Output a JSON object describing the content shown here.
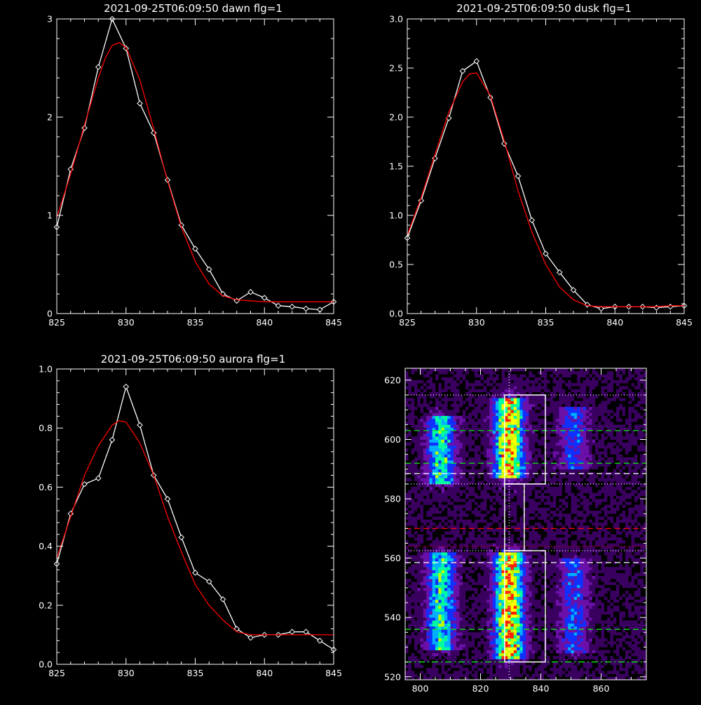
{
  "colors": {
    "background": "#000000",
    "axes": "#ffffff",
    "data_line": "#ffffff",
    "fit_line": "#ff0000"
  },
  "chart_data": [
    {
      "id": "dawn",
      "type": "line",
      "title": "2021-09-25T06:09:50 dawn flg=1",
      "xlim": [
        825,
        845
      ],
      "ylim": [
        0,
        3
      ],
      "xticks": [
        825,
        830,
        835,
        840,
        845
      ],
      "xtick_labels": [
        "825",
        "830",
        "835",
        "840",
        "845"
      ],
      "yticks": [
        0,
        1,
        2,
        3
      ],
      "ytick_labels": [
        "0",
        "1",
        "2",
        "3"
      ],
      "series": [
        {
          "role": "data",
          "color": "#ffffff",
          "marker": "diamond",
          "x": [
            825,
            826,
            827,
            828,
            829,
            830,
            831,
            832,
            833,
            834,
            835,
            836,
            837,
            838,
            839,
            840,
            841,
            842,
            843,
            844,
            845
          ],
          "y": [
            0.88,
            1.47,
            1.89,
            2.51,
            3.0,
            2.7,
            2.14,
            1.84,
            1.36,
            0.9,
            0.66,
            0.45,
            0.2,
            0.13,
            0.22,
            0.16,
            0.08,
            0.07,
            0.05,
            0.04,
            0.12
          ]
        },
        {
          "role": "fit",
          "color": "#ff0000",
          "x": [
            825,
            826,
            827,
            828,
            828.5,
            829,
            829.5,
            830,
            831,
            832,
            833,
            834,
            835,
            836,
            837,
            838,
            839,
            840,
            841,
            842,
            843,
            844,
            845
          ],
          "y": [
            0.98,
            1.42,
            1.92,
            2.4,
            2.6,
            2.73,
            2.76,
            2.71,
            2.38,
            1.88,
            1.35,
            0.88,
            0.53,
            0.3,
            0.18,
            0.14,
            0.13,
            0.12,
            0.12,
            0.12,
            0.12,
            0.12,
            0.12
          ]
        }
      ]
    },
    {
      "id": "dusk",
      "type": "line",
      "title": "2021-09-25T06:09:50 dusk flg=1",
      "xlim": [
        825,
        845
      ],
      "ylim": [
        0,
        3
      ],
      "xticks": [
        825,
        830,
        835,
        840,
        845
      ],
      "xtick_labels": [
        "825",
        "830",
        "835",
        "840",
        "845"
      ],
      "yticks": [
        0,
        0.5,
        1,
        1.5,
        2,
        2.5,
        3
      ],
      "ytick_labels": [
        "0.0",
        "0.5",
        "1.0",
        "1.5",
        "2.0",
        "2.5",
        "3.0"
      ],
      "series": [
        {
          "role": "data",
          "color": "#ffffff",
          "marker": "diamond",
          "x": [
            825,
            826,
            827,
            828,
            829,
            830,
            831,
            832,
            833,
            834,
            835,
            836,
            837,
            838,
            839,
            840,
            841,
            842,
            843,
            844,
            845
          ],
          "y": [
            0.77,
            1.15,
            1.58,
            1.99,
            2.47,
            2.57,
            2.2,
            1.73,
            1.4,
            0.95,
            0.61,
            0.42,
            0.24,
            0.09,
            0.05,
            0.07,
            0.07,
            0.07,
            0.06,
            0.07,
            0.08
          ]
        },
        {
          "role": "fit",
          "color": "#ff0000",
          "x": [
            825,
            826,
            827,
            828,
            829,
            829.5,
            830,
            831,
            832,
            833,
            834,
            835,
            836,
            837,
            838,
            839,
            840,
            841,
            842,
            843,
            844,
            845
          ],
          "y": [
            0.8,
            1.18,
            1.62,
            2.05,
            2.36,
            2.44,
            2.45,
            2.22,
            1.76,
            1.25,
            0.83,
            0.5,
            0.27,
            0.14,
            0.08,
            0.07,
            0.07,
            0.07,
            0.07,
            0.07,
            0.08,
            0.08
          ]
        }
      ]
    },
    {
      "id": "aurora",
      "type": "line",
      "title": "2021-09-25T06:09:50 aurora flg=1",
      "xlim": [
        825,
        845
      ],
      "ylim": [
        0,
        1
      ],
      "xticks": [
        825,
        830,
        835,
        840,
        845
      ],
      "xtick_labels": [
        "825",
        "830",
        "835",
        "840",
        "845"
      ],
      "yticks": [
        0,
        0.2,
        0.4,
        0.6,
        0.8,
        1.0
      ],
      "ytick_labels": [
        "0.0",
        "0.2",
        "0.4",
        "0.6",
        "0.8",
        "1.0"
      ],
      "series": [
        {
          "role": "data",
          "color": "#ffffff",
          "marker": "diamond",
          "x": [
            825,
            826,
            827,
            828,
            829,
            830,
            831,
            832,
            833,
            834,
            835,
            836,
            837,
            838,
            839,
            840,
            841,
            842,
            843,
            844,
            845
          ],
          "y": [
            0.34,
            0.51,
            0.61,
            0.63,
            0.76,
            0.94,
            0.81,
            0.64,
            0.56,
            0.43,
            0.31,
            0.28,
            0.22,
            0.12,
            0.09,
            0.1,
            0.1,
            0.11,
            0.11,
            0.08,
            0.05
          ]
        },
        {
          "role": "fit",
          "color": "#ff0000",
          "x": [
            825,
            826,
            827,
            828,
            829,
            829.5,
            830,
            831,
            832,
            833,
            834,
            835,
            836,
            837,
            838,
            839,
            840,
            841,
            842,
            843,
            844,
            845
          ],
          "y": [
            0.36,
            0.5,
            0.64,
            0.74,
            0.81,
            0.825,
            0.82,
            0.75,
            0.64,
            0.5,
            0.38,
            0.27,
            0.2,
            0.15,
            0.11,
            0.1,
            0.1,
            0.1,
            0.1,
            0.1,
            0.1,
            0.1
          ]
        }
      ]
    },
    {
      "id": "image",
      "type": "heatmap",
      "title": "",
      "xlim": [
        795,
        875
      ],
      "ylim": [
        519,
        624
      ],
      "xticks": [
        800,
        820,
        840,
        860
      ],
      "xtick_labels": [
        "800",
        "820",
        "840",
        "860"
      ],
      "yticks": [
        520,
        540,
        560,
        580,
        600,
        620
      ],
      "ytick_labels": [
        "520",
        "540",
        "560",
        "580",
        "600",
        "620"
      ],
      "colorscale": [
        "#000000",
        "#3a0060",
        "#6a10a8",
        "#1030ff",
        "#00b0ff",
        "#00ffa0",
        "#c0ff00",
        "#ffff00",
        "#ff2000"
      ],
      "bands": [
        {
          "x_center": 807,
          "x_width": 4.5,
          "y_ranges": [
            [
              585,
              608
            ],
            [
              529,
              562
            ]
          ],
          "peak": 0.62
        },
        {
          "x_center": 829.5,
          "x_width": 4.5,
          "y_ranges": [
            [
              587,
              614
            ],
            [
              526,
              562
            ]
          ],
          "peak": 1.0
        },
        {
          "x_center": 851,
          "x_width": 4.5,
          "y_ranges": [
            [
              590,
              611
            ],
            [
              528,
              560
            ]
          ],
          "peak": 0.35
        }
      ],
      "hlines": [
        {
          "y": 615,
          "color": "#ffffff",
          "style": "dotted"
        },
        {
          "y": 603,
          "color": "#00ff00",
          "style": "dashed"
        },
        {
          "y": 592,
          "color": "#00ff00",
          "style": "dashed"
        },
        {
          "y": 588.5,
          "color": "#ffffff",
          "style": "dashed"
        },
        {
          "y": 585,
          "color": "#ffffff",
          "style": "dotted"
        },
        {
          "y": 570,
          "color": "#ff0000",
          "style": "dashed"
        },
        {
          "y": 564,
          "color": "#ff0000",
          "style": "dotted"
        },
        {
          "y": 562.5,
          "color": "#ffffff",
          "style": "dotted"
        },
        {
          "y": 558.5,
          "color": "#ffffff",
          "style": "dashed"
        },
        {
          "y": 536,
          "color": "#00ff00",
          "style": "dashed"
        },
        {
          "y": 525,
          "color": "#00ff00",
          "style": "dashdot"
        }
      ],
      "vlines": [
        {
          "x": 829.5,
          "color": "#ffffff",
          "style": "dotted"
        }
      ],
      "boxes": [
        {
          "x0": 828,
          "x1": 841.5,
          "y0": 585,
          "y1": 615,
          "color": "#ffffff"
        },
        {
          "x0": 828,
          "x1": 834.5,
          "y0": 562.5,
          "y1": 585,
          "color": "#ffffff"
        },
        {
          "x0": 828,
          "x1": 841.5,
          "y0": 525,
          "y1": 562.5,
          "color": "#ffffff"
        }
      ]
    }
  ]
}
